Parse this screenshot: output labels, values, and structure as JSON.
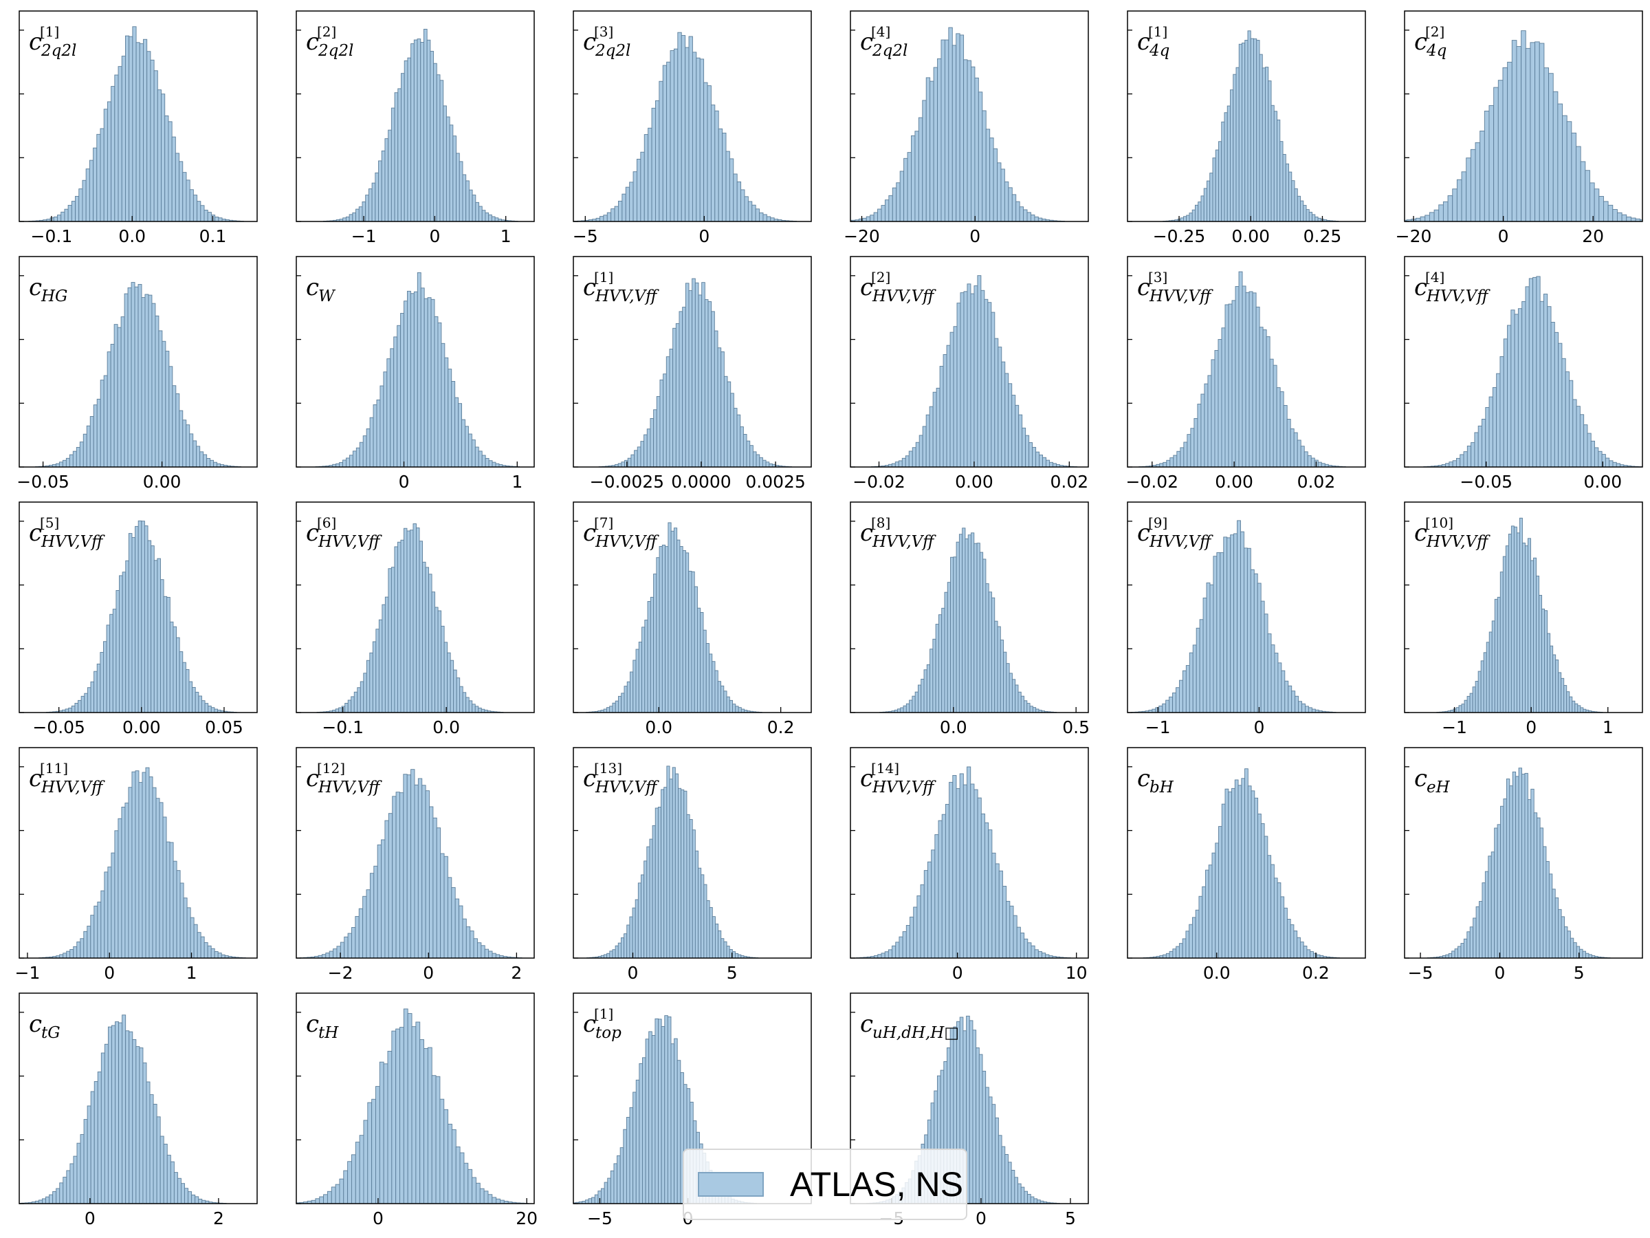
{
  "colors": {
    "bar_fill": "#a9c9e2",
    "bar_edge": "#5b7d99",
    "axes": "#000000"
  },
  "legend": {
    "label": "ATLAS, NS",
    "placement": "lower-center"
  },
  "chart_data": [
    {
      "type": "bar",
      "label": {
        "base": "c",
        "sub": "2q2l",
        "sup": "[1]"
      },
      "mean": 0.005,
      "sd": 0.037,
      "xlim": [
        -0.14,
        0.155
      ],
      "xticks": [
        {
          "v": -0.1,
          "t": "−0.1"
        },
        {
          "v": 0.0,
          "t": "0.0"
        },
        {
          "v": 0.1,
          "t": "0.1"
        }
      ]
    },
    {
      "type": "bar",
      "label": {
        "base": "c",
        "sub": "2q2l",
        "sup": "[2]"
      },
      "mean": -0.2,
      "sd": 0.38,
      "xlim": [
        -1.95,
        1.4
      ],
      "xticks": [
        {
          "v": -1,
          "t": "−1"
        },
        {
          "v": 0,
          "t": "0"
        },
        {
          "v": 1,
          "t": "1"
        }
      ]
    },
    {
      "type": "bar",
      "label": {
        "base": "c",
        "sub": "2q2l",
        "sup": "[3]"
      },
      "mean": -0.8,
      "sd": 1.3,
      "xlim": [
        -5.5,
        4.5
      ],
      "xticks": [
        {
          "v": -5,
          "t": "−5"
        },
        {
          "v": 0,
          "t": "0"
        }
      ]
    },
    {
      "type": "bar",
      "label": {
        "base": "c",
        "sub": "2q2l",
        "sup": "[4]"
      },
      "mean": -4,
      "sd": 5.5,
      "xlim": [
        -22,
        20
      ],
      "xticks": [
        {
          "v": -20,
          "t": "−20"
        },
        {
          "v": 0,
          "t": "0"
        }
      ]
    },
    {
      "type": "bar",
      "label": {
        "base": "c",
        "sub": "4q",
        "sup": "[1]"
      },
      "mean": 0.0,
      "sd": 0.085,
      "xlim": [
        -0.43,
        0.4
      ],
      "xticks": [
        {
          "v": -0.25,
          "t": "−0.25"
        },
        {
          "v": 0.0,
          "t": "0.00"
        },
        {
          "v": 0.25,
          "t": "0.25"
        }
      ]
    },
    {
      "type": "bar",
      "label": {
        "base": "c",
        "sub": "4q",
        "sup": "[2]"
      },
      "mean": 5,
      "sd": 8.5,
      "xlim": [
        -22,
        31
      ],
      "xticks": [
        {
          "v": -20,
          "t": "−20"
        },
        {
          "v": 0,
          "t": "0"
        },
        {
          "v": 20,
          "t": "20"
        }
      ]
    },
    {
      "type": "bar",
      "label": {
        "base": "c",
        "sub": "HG",
        "sup": ""
      },
      "mean": -0.01,
      "sd": 0.012,
      "xlim": [
        -0.06,
        0.04
      ],
      "xticks": [
        {
          "v": -0.05,
          "t": "−0.05"
        },
        {
          "v": 0.0,
          "t": "0.00"
        }
      ]
    },
    {
      "type": "bar",
      "label": {
        "base": "c",
        "sub": "W",
        "sup": ""
      },
      "mean": 0.12,
      "sd": 0.25,
      "xlim": [
        -0.95,
        1.15
      ],
      "xticks": [
        {
          "v": 0,
          "t": "0"
        },
        {
          "v": 1,
          "t": "1"
        }
      ]
    },
    {
      "type": "bar",
      "label": {
        "base": "c",
        "sub": "HVV,Vff",
        "sup": "[1]"
      },
      "mean": -0.0002,
      "sd": 0.0009,
      "xlim": [
        -0.0043,
        0.0037
      ],
      "xticks": [
        {
          "v": -0.0025,
          "t": "−0.0025"
        },
        {
          "v": 0.0,
          "t": "0.0000"
        },
        {
          "v": 0.0025,
          "t": "0.0025"
        }
      ]
    },
    {
      "type": "bar",
      "label": {
        "base": "c",
        "sub": "HVV,Vff",
        "sup": "[2]"
      },
      "mean": 0.0,
      "sd": 0.006,
      "xlim": [
        -0.026,
        0.024
      ],
      "xticks": [
        {
          "v": -0.02,
          "t": "−0.02"
        },
        {
          "v": 0.0,
          "t": "0.00"
        },
        {
          "v": 0.02,
          "t": "0.02"
        }
      ]
    },
    {
      "type": "bar",
      "label": {
        "base": "c",
        "sub": "HVV,Vff",
        "sup": "[3]"
      },
      "mean": 0.002,
      "sd": 0.007,
      "xlim": [
        -0.026,
        0.032
      ],
      "xticks": [
        {
          "v": -0.02,
          "t": "−0.02"
        },
        {
          "v": 0.0,
          "t": "0.00"
        },
        {
          "v": 0.02,
          "t": "0.02"
        }
      ]
    },
    {
      "type": "bar",
      "label": {
        "base": "c",
        "sub": "HVV,Vff",
        "sup": "[4]"
      },
      "mean": -0.03,
      "sd": 0.013,
      "xlim": [
        -0.085,
        0.017
      ],
      "xticks": [
        {
          "v": -0.05,
          "t": "−0.05"
        },
        {
          "v": 0.0,
          "t": "0.00"
        }
      ]
    },
    {
      "type": "bar",
      "label": {
        "base": "c",
        "sub": "HVV,Vff",
        "sup": "[5]"
      },
      "mean": 0.0,
      "sd": 0.016,
      "xlim": [
        -0.074,
        0.07
      ],
      "xticks": [
        {
          "v": -0.05,
          "t": "−0.05"
        },
        {
          "v": 0.0,
          "t": "0.00"
        },
        {
          "v": 0.05,
          "t": "0.05"
        }
      ]
    },
    {
      "type": "bar",
      "label": {
        "base": "c",
        "sub": "HVV,Vff",
        "sup": "[6]"
      },
      "mean": -0.035,
      "sd": 0.025,
      "xlim": [
        -0.145,
        0.085
      ],
      "xticks": [
        {
          "v": -0.1,
          "t": "−0.1"
        },
        {
          "v": 0.0,
          "t": "0.0"
        }
      ]
    },
    {
      "type": "bar",
      "label": {
        "base": "c",
        "sub": "HVV,Vff",
        "sup": "[7]"
      },
      "mean": 0.025,
      "sd": 0.04,
      "xlim": [
        -0.14,
        0.25
      ],
      "xticks": [
        {
          "v": 0.0,
          "t": "0.0"
        },
        {
          "v": 0.2,
          "t": "0.2"
        }
      ]
    },
    {
      "type": "bar",
      "label": {
        "base": "c",
        "sub": "HVV,Vff",
        "sup": "[8]"
      },
      "mean": 0.06,
      "sd": 0.1,
      "xlim": [
        -0.42,
        0.55
      ],
      "xticks": [
        {
          "v": 0.0,
          "t": "0.0"
        },
        {
          "v": 0.5,
          "t": "0.5"
        }
      ]
    },
    {
      "type": "bar",
      "label": {
        "base": "c",
        "sub": "HVV,Vff",
        "sup": "[9]"
      },
      "mean": -0.25,
      "sd": 0.28,
      "xlim": [
        -1.3,
        1.05
      ],
      "xticks": [
        {
          "v": -1,
          "t": "−1"
        },
        {
          "v": 0,
          "t": "0"
        }
      ]
    },
    {
      "type": "bar",
      "label": {
        "base": "c",
        "sub": "HVV,Vff",
        "sup": "[10]"
      },
      "mean": -0.15,
      "sd": 0.3,
      "xlim": [
        -1.65,
        1.45
      ],
      "xticks": [
        {
          "v": -1,
          "t": "−1"
        },
        {
          "v": 0,
          "t": "0"
        },
        {
          "v": 1,
          "t": "1"
        }
      ]
    },
    {
      "type": "bar",
      "label": {
        "base": "c",
        "sub": "HVV,Vff",
        "sup": "[11]"
      },
      "mean": 0.4,
      "sd": 0.35,
      "xlim": [
        -1.1,
        1.8
      ],
      "xticks": [
        {
          "v": -1,
          "t": "−1"
        },
        {
          "v": 0,
          "t": "0"
        },
        {
          "v": 1,
          "t": "1"
        }
      ]
    },
    {
      "type": "bar",
      "label": {
        "base": "c",
        "sub": "HVV,Vff",
        "sup": "[12]"
      },
      "mean": -0.4,
      "sd": 0.7,
      "xlim": [
        -3,
        2.4
      ],
      "xticks": [
        {
          "v": -2,
          "t": "−2"
        },
        {
          "v": 0,
          "t": "0"
        },
        {
          "v": 2,
          "t": "2"
        }
      ]
    },
    {
      "type": "bar",
      "label": {
        "base": "c",
        "sub": "HVV,Vff",
        "sup": "[13]"
      },
      "mean": 2,
      "sd": 1.2,
      "xlim": [
        -3,
        9
      ],
      "xticks": [
        {
          "v": 0,
          "t": "0"
        },
        {
          "v": 5,
          "t": "5"
        }
      ]
    },
    {
      "type": "bar",
      "label": {
        "base": "c",
        "sub": "HVV,Vff",
        "sup": "[14]"
      },
      "mean": 0.5,
      "sd": 2.5,
      "xlim": [
        -9,
        11
      ],
      "xticks": [
        {
          "v": 0,
          "t": "0"
        },
        {
          "v": 10,
          "t": "10"
        }
      ]
    },
    {
      "type": "bar",
      "label": {
        "base": "c",
        "sub": "bH",
        "sup": ""
      },
      "mean": 0.05,
      "sd": 0.055,
      "xlim": [
        -0.18,
        0.3
      ],
      "xticks": [
        {
          "v": 0.0,
          "t": "0.0"
        },
        {
          "v": 0.2,
          "t": "0.2"
        }
      ]
    },
    {
      "type": "bar",
      "label": {
        "base": "c",
        "sub": "eH",
        "sup": ""
      },
      "mean": 1.2,
      "sd": 1.6,
      "xlim": [
        -6,
        9
      ],
      "xticks": [
        {
          "v": -5,
          "t": "−5"
        },
        {
          "v": 0,
          "t": "0"
        },
        {
          "v": 5,
          "t": "5"
        }
      ]
    },
    {
      "type": "bar",
      "label": {
        "base": "c",
        "sub": "tG",
        "sup": ""
      },
      "mean": 0.5,
      "sd": 0.45,
      "xlim": [
        -1.1,
        2.6
      ],
      "xticks": [
        {
          "v": 0,
          "t": "0"
        },
        {
          "v": 2,
          "t": "2"
        }
      ]
    },
    {
      "type": "bar",
      "label": {
        "base": "c",
        "sub": "tH",
        "sup": ""
      },
      "mean": 4,
      "sd": 4.5,
      "xlim": [
        -11,
        21
      ],
      "xticks": [
        {
          "v": 0,
          "t": "0"
        },
        {
          "v": 20,
          "t": "20"
        }
      ]
    },
    {
      "type": "bar",
      "label": {
        "base": "c",
        "sub": "top",
        "sup": "[1]"
      },
      "mean": -1.5,
      "sd": 1.5,
      "xlim": [
        -6.5,
        7
      ],
      "xticks": [
        {
          "v": -5,
          "t": "−5"
        },
        {
          "v": 0,
          "t": "0"
        }
      ]
    },
    {
      "type": "bar",
      "label": {
        "base": "c",
        "sub": "uH,dH,H□",
        "sup": ""
      },
      "mean": -1,
      "sd": 1.5,
      "xlim": [
        -7.3,
        6
      ],
      "xticks": [
        {
          "v": -5,
          "t": "−5"
        },
        {
          "v": 0,
          "t": "0"
        },
        {
          "v": 5,
          "t": "5"
        }
      ]
    }
  ]
}
